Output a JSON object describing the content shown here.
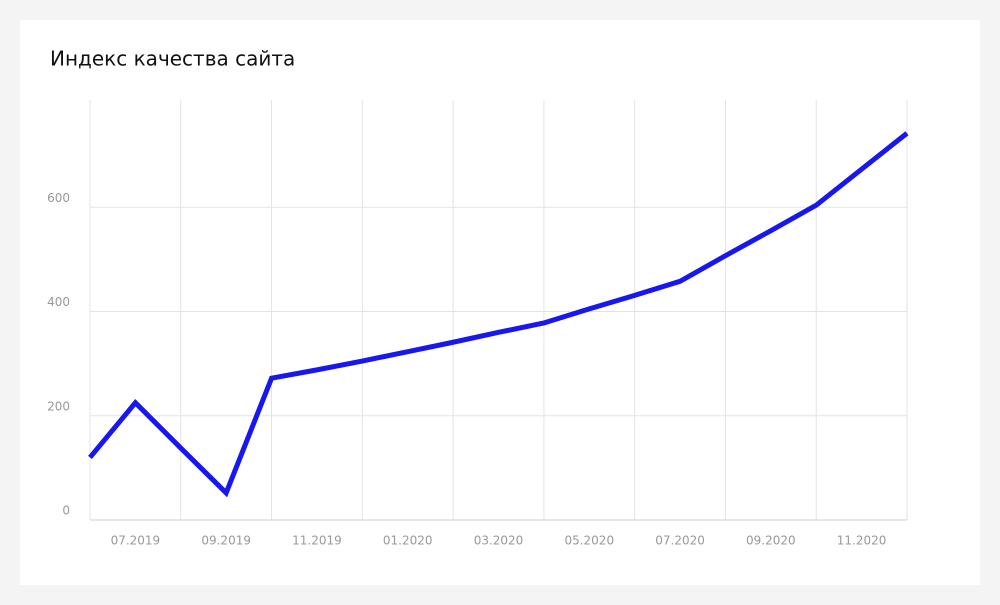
{
  "chart_data": {
    "type": "line",
    "title": "Индекс качества сайта",
    "categories": [
      null,
      "07.2019",
      null,
      "09.2019",
      null,
      "11.2019",
      null,
      "01.2020",
      null,
      "03.2020",
      null,
      "05.2020",
      null,
      "07.2020",
      null,
      "09.2020",
      null,
      "11.2020",
      null
    ],
    "series": [
      {
        "color": "#1717ee",
        "values": [
          120,
          225,
          138,
          52,
          272,
          288,
          305,
          323,
          341,
          360,
          378,
          405,
          431,
          458,
          507,
          555,
          604,
          673,
          742
        ]
      }
    ],
    "ylim": [
      0,
      800
    ],
    "yticks": [
      0,
      200,
      400,
      600
    ],
    "grid": true
  }
}
